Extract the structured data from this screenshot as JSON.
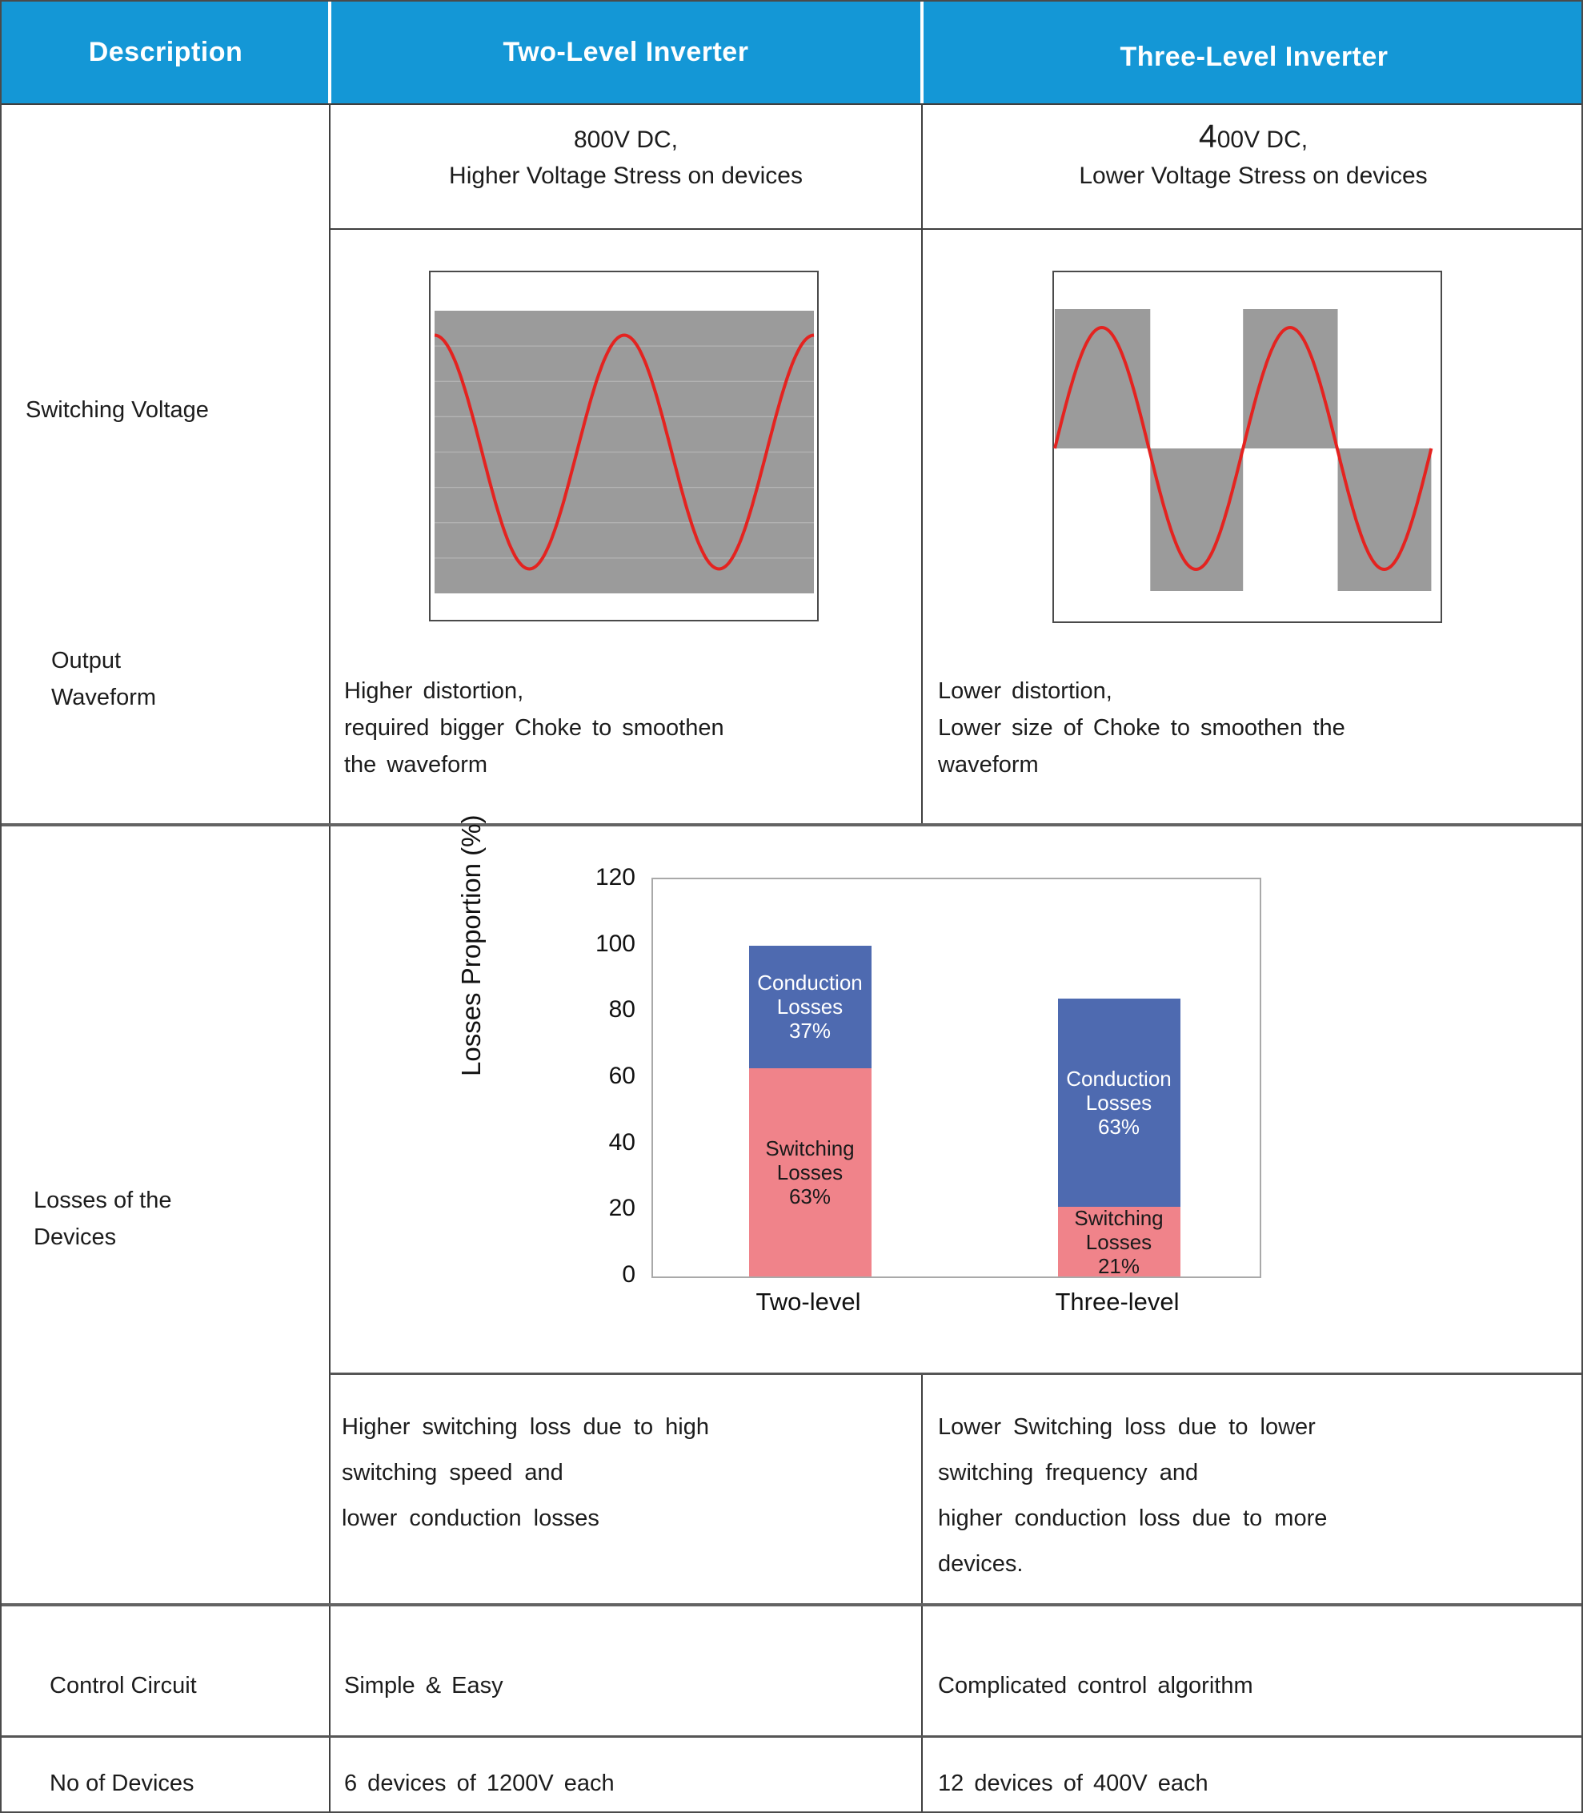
{
  "header": {
    "description": "Description",
    "two_level": "Two-Level Inverter",
    "three_level": "Three-Level Inverter"
  },
  "row_labels": {
    "switching_voltage": "Switching Voltage",
    "output_waveform": [
      "Output",
      "Waveform"
    ],
    "losses": [
      "Losses of the",
      "Devices"
    ],
    "control_circuit": "Control Circuit",
    "no_of_devices": "No of Devices"
  },
  "switching_voltage": {
    "two_level": [
      "800V DC,",
      "Higher Voltage Stress on devices"
    ],
    "three_level_prefix": "4",
    "three_level_rest": "00V DC,",
    "three_level_line2": "Lower Voltage Stress on devices"
  },
  "output_waveform": {
    "two_level": [
      "Higher distortion,",
      "required bigger Choke to smoothen",
      "the waveform"
    ],
    "three_level": [
      "Lower distortion,",
      "Lower size of Choke to smoothen the",
      "waveform"
    ]
  },
  "losses_text": {
    "two_level": [
      "Higher switching loss due to high",
      "switching speed and",
      "lower conduction losses"
    ],
    "three_level": [
      "Lower Switching loss due to lower",
      "switching frequency and",
      "higher conduction loss due to more",
      "devices."
    ]
  },
  "control_circuit": {
    "two_level": "Simple & Easy",
    "three_level": "Complicated control algorithm"
  },
  "no_of_devices": {
    "two_level": "6 devices of 1200V each",
    "three_level": "12 devices of 400V each"
  },
  "colors": {
    "header_blue": "#1497d6",
    "waveform_gray": "#9b9b9b",
    "waveform_gridline": "#b5b5b5",
    "waveform_red": "#e42320",
    "bar_pink": "#f0838a",
    "bar_blue": "#4e6ab0",
    "chart_frame_gray": "#a9a9a9"
  },
  "chart_data": [
    {
      "id": "two-level-waveform",
      "type": "line",
      "title": "Two-level inverter switching voltage with sinusoidal output",
      "series": [
        {
          "name": "switching-voltage-envelope",
          "style": "filled-band",
          "note": "single full-height gray band (two-level switching)"
        },
        {
          "name": "sinusoidal-output",
          "style": "line",
          "cycles": 2,
          "phase": "cos",
          "starts_at": "positive peak"
        }
      ],
      "gridlines": 7,
      "legend": false,
      "axes_labeled": false
    },
    {
      "id": "three-level-waveform",
      "type": "line",
      "title": "Three-level inverter stepped switching voltage with sinusoidal output",
      "series": [
        {
          "name": "switching-voltage-blocks",
          "style": "stepped-blocks",
          "levels": 3,
          "block_sequence": [
            "positive",
            "negative",
            "positive",
            "negative"
          ]
        },
        {
          "name": "sinusoidal-output",
          "style": "line",
          "cycles": 2,
          "phase": "sin",
          "starts_at": "zero rising"
        }
      ],
      "legend": false,
      "axes_labeled": false
    },
    {
      "id": "losses-bar-chart",
      "type": "bar",
      "stacked": true,
      "categories": [
        "Two-level",
        "Three-level"
      ],
      "series": [
        {
          "name": "Switching Losses",
          "color": "#f0838a",
          "label_color": "#1a1a1a",
          "values": [
            63,
            21
          ]
        },
        {
          "name": "Conduction Losses",
          "color": "#4e6ab0",
          "label_color": "#ffffff",
          "values": [
            37,
            63
          ]
        }
      ],
      "bar_labels": [
        [
          [
            "Switching",
            "Losses",
            "63%"
          ],
          [
            "Conduction",
            "Losses",
            "37%"
          ]
        ],
        [
          [
            "Switching",
            "Losses",
            "21%"
          ],
          [
            "Conduction",
            "Losses",
            "63%"
          ]
        ]
      ],
      "ylabel": "Losses Proportion (%)",
      "xlabel": "",
      "yticks": [
        0,
        20,
        40,
        60,
        80,
        100,
        120
      ],
      "ylim": [
        0,
        120
      ],
      "grid": false,
      "legend": false
    }
  ]
}
